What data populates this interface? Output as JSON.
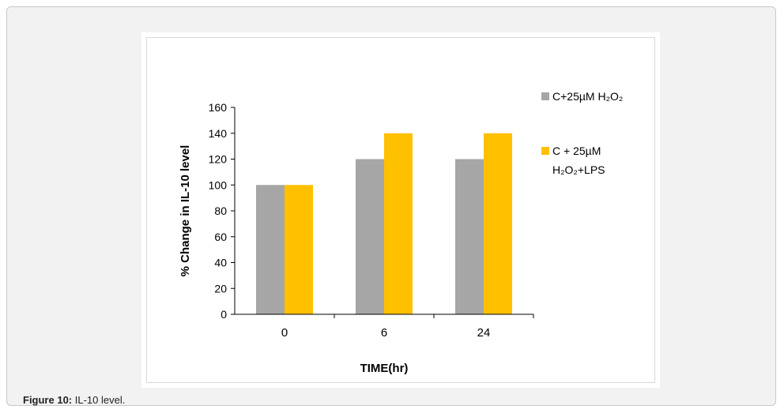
{
  "caption": {
    "label": "Figure 10:",
    "text": " IL-10 level."
  },
  "chart_data": {
    "type": "bar",
    "categories": [
      "0",
      "6",
      "24"
    ],
    "series": [
      {
        "name": "C+25µM H₂O₂",
        "values": [
          100,
          120,
          120
        ],
        "color": "#a6a6a6"
      },
      {
        "name_line1": "C + 25µM",
        "name_line2": "H₂O₂+LPS",
        "values": [
          100,
          140,
          140
        ],
        "color": "#ffc000"
      }
    ],
    "xlabel": "TIME(hr)",
    "ylabel": "% Change in IL-10 level",
    "ylim": [
      0,
      160
    ],
    "yticks": [
      0,
      20,
      40,
      60,
      80,
      100,
      120,
      140,
      160
    ],
    "grid": false,
    "legend": "right"
  }
}
